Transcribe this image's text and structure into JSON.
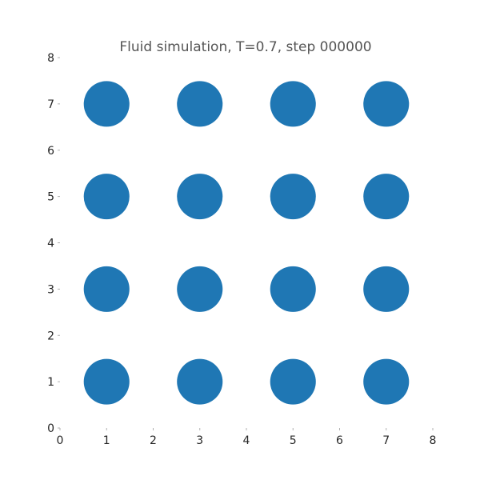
{
  "chart_data": {
    "type": "scatter",
    "title": "Fluid simulation, T=0.7, step 000000",
    "xlabel": "",
    "ylabel": "",
    "xlim": [
      0,
      8
    ],
    "ylim": [
      0,
      8
    ],
    "grid": false,
    "x_ticks": [
      0,
      1,
      2,
      3,
      4,
      5,
      6,
      7,
      8
    ],
    "y_ticks": [
      0,
      1,
      2,
      3,
      4,
      5,
      6,
      7,
      8
    ],
    "marker_diameter_data_units": 0.98,
    "color": "#1f77b4",
    "series": [
      {
        "name": "particles",
        "points": [
          {
            "x": 1,
            "y": 1
          },
          {
            "x": 3,
            "y": 1
          },
          {
            "x": 5,
            "y": 1
          },
          {
            "x": 7,
            "y": 1
          },
          {
            "x": 1,
            "y": 3
          },
          {
            "x": 3,
            "y": 3
          },
          {
            "x": 5,
            "y": 3
          },
          {
            "x": 7,
            "y": 3
          },
          {
            "x": 1,
            "y": 5
          },
          {
            "x": 3,
            "y": 5
          },
          {
            "x": 5,
            "y": 5
          },
          {
            "x": 7,
            "y": 5
          },
          {
            "x": 1,
            "y": 7
          },
          {
            "x": 3,
            "y": 7
          },
          {
            "x": 5,
            "y": 7
          },
          {
            "x": 7,
            "y": 7
          }
        ]
      }
    ]
  }
}
